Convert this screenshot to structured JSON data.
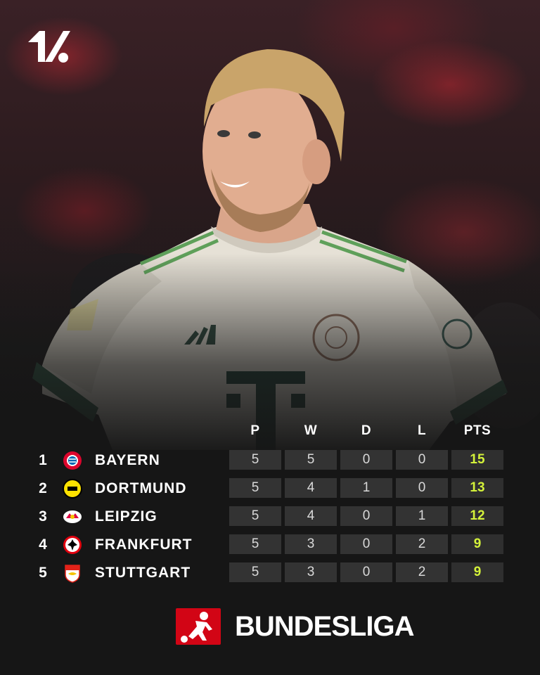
{
  "brand": {
    "icon": "onefootball-logo"
  },
  "table": {
    "columns": [
      "P",
      "W",
      "D",
      "L",
      "PTS"
    ],
    "rows": [
      {
        "rank": "1",
        "team": "BAYERN",
        "crest": "bayern-crest-icon",
        "p": "5",
        "w": "5",
        "d": "0",
        "l": "0",
        "pts": "15"
      },
      {
        "rank": "2",
        "team": "DORTMUND",
        "crest": "dortmund-crest-icon",
        "p": "5",
        "w": "4",
        "d": "1",
        "l": "0",
        "pts": "13"
      },
      {
        "rank": "3",
        "team": "LEIPZIG",
        "crest": "leipzig-crest-icon",
        "p": "5",
        "w": "4",
        "d": "0",
        "l": "1",
        "pts": "12"
      },
      {
        "rank": "4",
        "team": "FRANKFURT",
        "crest": "frankfurt-crest-icon",
        "p": "5",
        "w": "3",
        "d": "0",
        "l": "2",
        "pts": "9"
      },
      {
        "rank": "5",
        "team": "STUTTGART",
        "crest": "stuttgart-crest-icon",
        "p": "5",
        "w": "3",
        "d": "0",
        "l": "2",
        "pts": "9"
      }
    ]
  },
  "league": {
    "name": "BUNDESLIGA",
    "icon": "bundesliga-logo"
  },
  "colors": {
    "points": "#d4f23a",
    "cell_bg": "#333333",
    "bundesliga_red": "#d20515"
  }
}
